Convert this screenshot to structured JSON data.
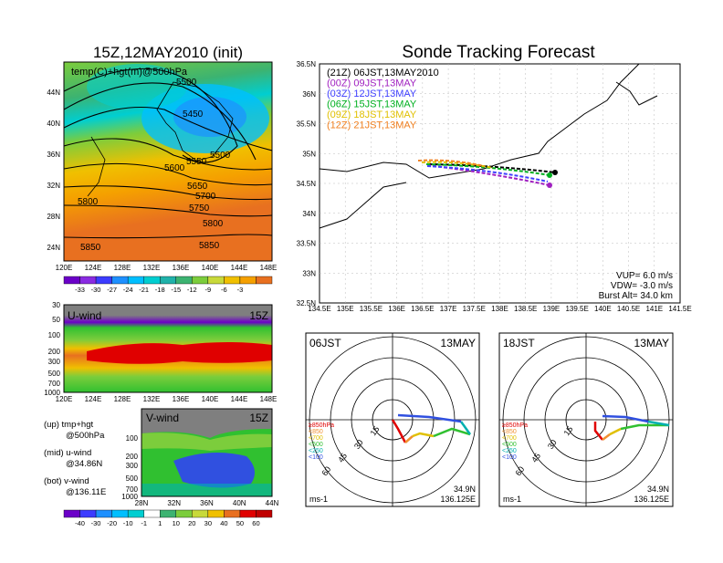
{
  "page_title": "Sonde Tracking Forecast",
  "map500": {
    "title": "15Z,12MAY2010 (init)",
    "label": "temp(C)+hgt(m)@500hPa",
    "xticks": [
      "120E",
      "124E",
      "128E",
      "132E",
      "136E",
      "140E",
      "144E",
      "148E"
    ],
    "yticks": [
      "44N",
      "40N",
      "36N",
      "32N",
      "28N",
      "24N"
    ],
    "contour_labels": [
      "5500",
      "5450",
      "5500",
      "5550",
      "5600",
      "5650",
      "5700",
      "5750",
      "5800",
      "5800",
      "5850",
      "5850"
    ],
    "colorbar": [
      "-33",
      "-30",
      "-27",
      "-24",
      "-21",
      "-18",
      "-15",
      "-12",
      "-9",
      "-6",
      "-3"
    ],
    "colors": [
      "#6b00c8",
      "#8a2be2",
      "#3c3cff",
      "#1e90ff",
      "#00bfff",
      "#00ced1",
      "#20b2aa",
      "#3cb371",
      "#7ccd3c",
      "#c8d93a",
      "#f0c000",
      "#f5a000",
      "#e87020"
    ]
  },
  "uwind": {
    "label": "U-wind",
    "time": "15Z",
    "yticks": [
      "30",
      "50",
      "100",
      "200",
      "300",
      "500",
      "700",
      "1000"
    ],
    "xticks": [
      "120E",
      "124E",
      "128E",
      "132E",
      "136E",
      "140E",
      "144E",
      "148E"
    ]
  },
  "vwind": {
    "label": "V-wind",
    "time": "15Z",
    "yticks": [
      "100",
      "200",
      "300",
      "500",
      "700",
      "1000"
    ],
    "xticks": [
      "28N",
      "32N",
      "36N",
      "40N",
      "44N"
    ],
    "colorbar": [
      "-40",
      "-30",
      "-20",
      "-10",
      "-1",
      "1",
      "10",
      "20",
      "30",
      "40",
      "50",
      "60"
    ]
  },
  "legend_notes": [
    {
      "a": "(up) tmp+hgt",
      "b": "@500hPa"
    },
    {
      "a": "(mid) u-wind",
      "b": "@34.86N"
    },
    {
      "a": "(bot) v-wind",
      "b": "@136.11E"
    }
  ],
  "track": {
    "yticks": [
      "36.5N",
      "36N",
      "35.5N",
      "35N",
      "34.5N",
      "34N",
      "33.5N",
      "33N",
      "32.5N"
    ],
    "xticks": [
      "134.5E",
      "135E",
      "135.5E",
      "136E",
      "136.5E",
      "137E",
      "137.5E",
      "138E",
      "138.5E",
      "139E",
      "139.5E",
      "140E",
      "140.5E",
      "141E",
      "141.5E"
    ],
    "runs": [
      {
        "label": "(21Z)  06JST,13MAY2010",
        "color": "#000000"
      },
      {
        "label": "(00Z)  09JST,13MAY",
        "color": "#a020c0"
      },
      {
        "label": "(03Z)  12JST,13MAY",
        "color": "#4040ff"
      },
      {
        "label": "(06Z)  15JST,13MAY",
        "color": "#00b020"
      },
      {
        "label": "(09Z)  18JST,13MAY",
        "color": "#e0c000"
      },
      {
        "label": "(12Z)  21JST,13MAY",
        "color": "#f08020"
      }
    ],
    "params": [
      "VUP=  6.0  m/s",
      "VDW= -3.0  m/s",
      "Burst Alt=  34.0  km"
    ]
  },
  "hodo1": {
    "time": "06JST",
    "date": "13MAY",
    "rings": [
      "15",
      "30",
      "45",
      "60"
    ],
    "unit": "ms-1",
    "lat": "34.9N",
    "lon": "136.125E"
  },
  "hodo2": {
    "time": "18JST",
    "date": "13MAY",
    "rings": [
      "15",
      "30",
      "45",
      "60"
    ],
    "unit": "ms-1",
    "lat": "34.9N",
    "lon": "136.125E"
  },
  "hodo_legend": [
    {
      "label": "≥850hPa",
      "color": "#e00000"
    },
    {
      "label": "<850",
      "color": "#f09030"
    },
    {
      "label": "<700",
      "color": "#e0c000"
    },
    {
      "label": "<500",
      "color": "#30c030"
    },
    {
      "label": "<250",
      "color": "#00b0b0"
    },
    {
      "label": "<100",
      "color": "#3050e0"
    }
  ]
}
